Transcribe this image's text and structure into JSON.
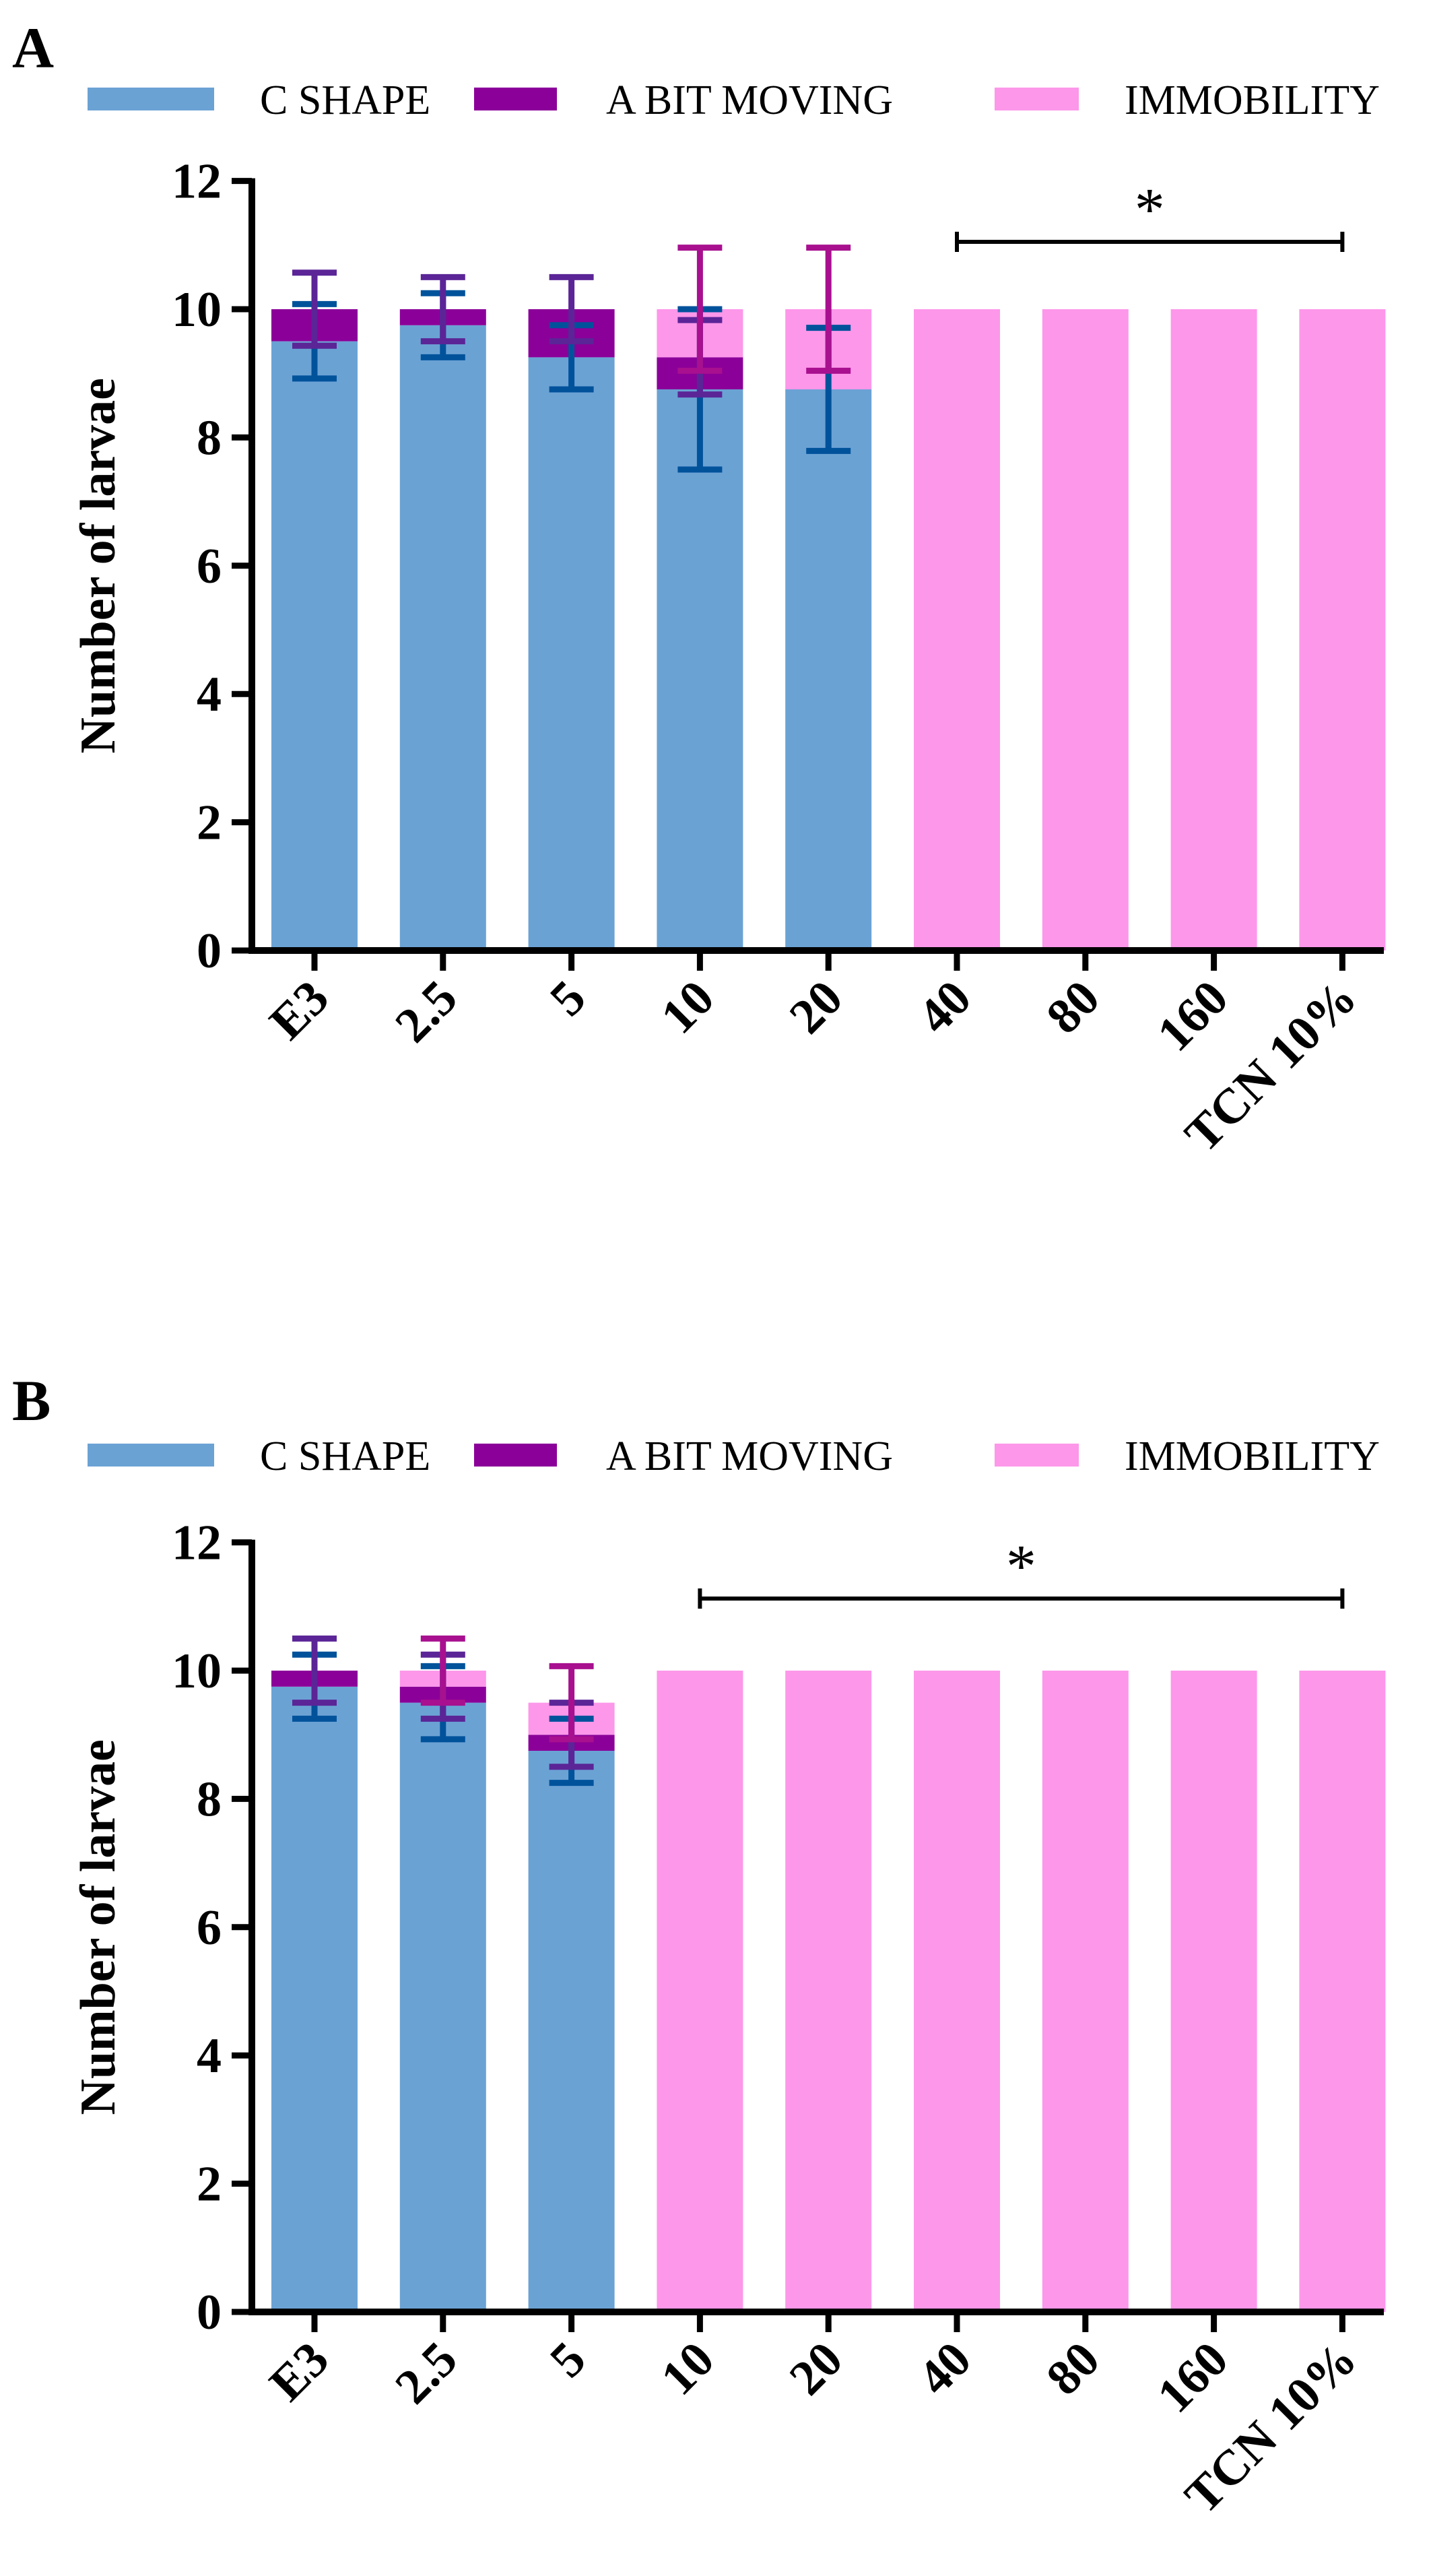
{
  "colors": {
    "c_shape": "#6ba2d4",
    "a_bit_moving": "#8b0099",
    "immobility": "#fd97ea",
    "err_c_shape": "#00529b",
    "err_a_bit_moving": "#5b2597",
    "err_immobility": "#a8108f"
  },
  "chart_data": [
    {
      "type": "bar",
      "stacked": true,
      "panel_label": "A",
      "ylabel": "Number of larvae",
      "ylim": [
        0,
        12
      ],
      "yticks": [
        "0",
        "2",
        "4",
        "6",
        "8",
        "10",
        "12"
      ],
      "categories": [
        "E3",
        "2.5",
        "5",
        "10",
        "20",
        "40",
        "80",
        "160",
        "TCN 10%"
      ],
      "legend": [
        "C SHAPE",
        "A BIT MOVING",
        "IMMOBILITY"
      ],
      "legend_position": "top",
      "series": [
        {
          "name": "C SHAPE",
          "key": "c_shape",
          "values": [
            9.5,
            9.75,
            9.25,
            8.75,
            8.75,
            0,
            0,
            0,
            0
          ],
          "error": [
            0.58,
            0.5,
            0.5,
            1.25,
            0.96,
            0,
            0,
            0,
            0
          ]
        },
        {
          "name": "A BIT MOVING",
          "key": "a_bit_moving",
          "values": [
            0.5,
            0.25,
            0.75,
            0.5,
            0,
            0,
            0,
            0,
            0
          ],
          "error": [
            0.57,
            0.5,
            0.5,
            0.58,
            0,
            0,
            0,
            0,
            0
          ]
        },
        {
          "name": "IMMOBILITY",
          "key": "immobility",
          "values": [
            0,
            0,
            0,
            0.75,
            1.25,
            10,
            10,
            10,
            10
          ],
          "error": [
            0,
            0,
            0,
            0.96,
            0.96,
            0,
            0,
            0,
            0
          ]
        }
      ],
      "significance": {
        "label": "*",
        "from": "40",
        "to": "TCN 10%"
      }
    },
    {
      "type": "bar",
      "stacked": true,
      "panel_label": "B",
      "ylabel": "Number of larvae",
      "ylim": [
        0,
        12
      ],
      "yticks": [
        "0",
        "2",
        "4",
        "6",
        "8",
        "10",
        "12"
      ],
      "categories": [
        "E3",
        "2.5",
        "5",
        "10",
        "20",
        "40",
        "80",
        "160",
        "TCN 10%"
      ],
      "legend": [
        "C SHAPE",
        "A BIT MOVING",
        "IMMOBILITY"
      ],
      "legend_position": "top",
      "series": [
        {
          "name": "C SHAPE",
          "key": "c_shape",
          "values": [
            9.75,
            9.5,
            8.75,
            0,
            0,
            0,
            0,
            0,
            0
          ],
          "error": [
            0.5,
            0.57,
            0.5,
            0,
            0,
            0,
            0,
            0,
            0
          ]
        },
        {
          "name": "A BIT MOVING",
          "key": "a_bit_moving",
          "values": [
            0.25,
            0.25,
            0.25,
            0,
            0,
            0,
            0,
            0,
            0
          ],
          "error": [
            0.5,
            0.5,
            0.5,
            0,
            0,
            0,
            0,
            0,
            0
          ]
        },
        {
          "name": "IMMOBILITY",
          "key": "immobility",
          "values": [
            0,
            0.25,
            0.5,
            10,
            10,
            10,
            10,
            10,
            10
          ],
          "error": [
            0,
            0.5,
            0.57,
            0,
            0,
            0,
            0,
            0,
            0
          ]
        }
      ],
      "significance": {
        "label": "*",
        "from": "10",
        "to": "TCN 10%"
      }
    }
  ]
}
